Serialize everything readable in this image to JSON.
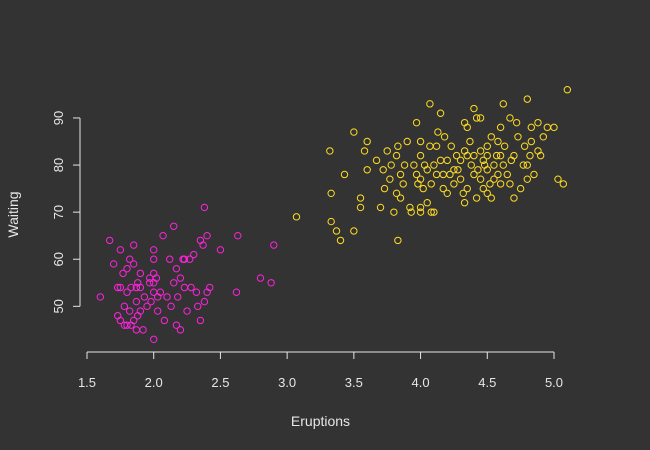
{
  "chart_data": {
    "type": "scatter",
    "title": "",
    "xlabel": "Eruptions",
    "ylabel": "Waiting",
    "xlim": [
      1.5,
      5.15
    ],
    "ylim": [
      42,
      97
    ],
    "xticks": [
      1.5,
      2.0,
      2.5,
      3.0,
      3.5,
      4.0,
      4.5,
      5.0
    ],
    "xtick_labels": [
      "1.5",
      "2.0",
      "2.5",
      "3.0",
      "3.5",
      "4.0",
      "4.5",
      "5.0"
    ],
    "yticks": [
      50,
      60,
      70,
      80,
      90
    ],
    "ytick_labels": [
      "50",
      "60",
      "70",
      "80",
      "90"
    ],
    "background": "#333333",
    "foreground": "#e6e6e6",
    "grid": false,
    "series": [
      {
        "color": "#ff22dd",
        "points": [
          [
            1.6,
            52
          ],
          [
            1.67,
            64
          ],
          [
            1.7,
            59
          ],
          [
            1.73,
            54
          ],
          [
            1.73,
            48
          ],
          [
            1.75,
            62
          ],
          [
            1.75,
            47
          ],
          [
            1.75,
            54
          ],
          [
            1.77,
            57
          ],
          [
            1.78,
            50
          ],
          [
            1.78,
            46
          ],
          [
            1.8,
            53
          ],
          [
            1.8,
            46
          ],
          [
            1.8,
            58
          ],
          [
            1.82,
            60
          ],
          [
            1.82,
            49
          ],
          [
            1.83,
            54
          ],
          [
            1.83,
            46
          ],
          [
            1.85,
            63
          ],
          [
            1.85,
            59
          ],
          [
            1.85,
            47
          ],
          [
            1.87,
            54
          ],
          [
            1.87,
            51
          ],
          [
            1.87,
            45
          ],
          [
            1.88,
            55
          ],
          [
            1.88,
            48
          ],
          [
            1.9,
            54
          ],
          [
            1.9,
            57
          ],
          [
            1.9,
            49
          ],
          [
            1.92,
            45
          ],
          [
            1.93,
            52
          ],
          [
            1.95,
            50
          ],
          [
            1.97,
            56
          ],
          [
            1.97,
            55
          ],
          [
            1.98,
            51
          ],
          [
            2.0,
            62
          ],
          [
            2.0,
            60
          ],
          [
            2.0,
            57
          ],
          [
            2.0,
            55
          ],
          [
            2.0,
            53
          ],
          [
            2.0,
            43
          ],
          [
            2.02,
            56
          ],
          [
            2.03,
            49
          ],
          [
            2.03,
            52
          ],
          [
            2.05,
            53
          ],
          [
            2.07,
            65
          ],
          [
            2.08,
            47
          ],
          [
            2.1,
            52
          ],
          [
            2.12,
            60
          ],
          [
            2.13,
            50
          ],
          [
            2.15,
            67
          ],
          [
            2.15,
            55
          ],
          [
            2.17,
            58
          ],
          [
            2.17,
            46
          ],
          [
            2.18,
            52
          ],
          [
            2.2,
            56
          ],
          [
            2.2,
            45
          ],
          [
            2.22,
            60
          ],
          [
            2.23,
            60
          ],
          [
            2.23,
            54
          ],
          [
            2.25,
            49
          ],
          [
            2.27,
            60
          ],
          [
            2.28,
            54
          ],
          [
            2.3,
            61
          ],
          [
            2.32,
            53
          ],
          [
            2.33,
            50
          ],
          [
            2.35,
            64
          ],
          [
            2.35,
            47
          ],
          [
            2.37,
            63
          ],
          [
            2.38,
            71
          ],
          [
            2.38,
            51
          ],
          [
            2.4,
            65
          ],
          [
            2.4,
            53
          ],
          [
            2.42,
            54
          ],
          [
            2.5,
            62
          ],
          [
            2.62,
            53
          ],
          [
            2.63,
            65
          ],
          [
            2.8,
            56
          ],
          [
            2.88,
            55
          ],
          [
            2.9,
            63
          ]
        ]
      },
      {
        "color": "#ffdd22",
        "points": [
          [
            3.07,
            69
          ],
          [
            3.32,
            83
          ],
          [
            3.33,
            74
          ],
          [
            3.33,
            68
          ],
          [
            3.37,
            66
          ],
          [
            3.4,
            64
          ],
          [
            3.43,
            78
          ],
          [
            3.5,
            87
          ],
          [
            3.5,
            66
          ],
          [
            3.55,
            71
          ],
          [
            3.55,
            73
          ],
          [
            3.58,
            83
          ],
          [
            3.6,
            85
          ],
          [
            3.6,
            79
          ],
          [
            3.67,
            81
          ],
          [
            3.7,
            71
          ],
          [
            3.72,
            79
          ],
          [
            3.73,
            75
          ],
          [
            3.75,
            83
          ],
          [
            3.77,
            77
          ],
          [
            3.78,
            80
          ],
          [
            3.8,
            70
          ],
          [
            3.82,
            82
          ],
          [
            3.82,
            74
          ],
          [
            3.83,
            84
          ],
          [
            3.83,
            64
          ],
          [
            3.85,
            78
          ],
          [
            3.85,
            73
          ],
          [
            3.87,
            76
          ],
          [
            3.88,
            80
          ],
          [
            3.9,
            85
          ],
          [
            3.92,
            71
          ],
          [
            3.93,
            70
          ],
          [
            3.95,
            80
          ],
          [
            3.97,
            89
          ],
          [
            3.97,
            78
          ],
          [
            3.98,
            76
          ],
          [
            4.0,
            85
          ],
          [
            4.0,
            82
          ],
          [
            4.0,
            77
          ],
          [
            4.0,
            71
          ],
          [
            4.0,
            70
          ],
          [
            4.02,
            75
          ],
          [
            4.03,
            80
          ],
          [
            4.05,
            72
          ],
          [
            4.05,
            79
          ],
          [
            4.07,
            93
          ],
          [
            4.07,
            84
          ],
          [
            4.08,
            70
          ],
          [
            4.08,
            76
          ],
          [
            4.1,
            80
          ],
          [
            4.1,
            70
          ],
          [
            4.12,
            78
          ],
          [
            4.12,
            84
          ],
          [
            4.13,
            87
          ],
          [
            4.15,
            91
          ],
          [
            4.15,
            81
          ],
          [
            4.17,
            75
          ],
          [
            4.17,
            78
          ],
          [
            4.18,
            86
          ],
          [
            4.2,
            81
          ],
          [
            4.2,
            74
          ],
          [
            4.22,
            78
          ],
          [
            4.23,
            84
          ],
          [
            4.25,
            76
          ],
          [
            4.25,
            79
          ],
          [
            4.27,
            82
          ],
          [
            4.28,
            79
          ],
          [
            4.3,
            81
          ],
          [
            4.3,
            77
          ],
          [
            4.32,
            74
          ],
          [
            4.33,
            89
          ],
          [
            4.33,
            83
          ],
          [
            4.33,
            72
          ],
          [
            4.35,
            88
          ],
          [
            4.35,
            82
          ],
          [
            4.35,
            75
          ],
          [
            4.37,
            85
          ],
          [
            4.38,
            80
          ],
          [
            4.4,
            92
          ],
          [
            4.4,
            82
          ],
          [
            4.4,
            78
          ],
          [
            4.42,
            90
          ],
          [
            4.42,
            73
          ],
          [
            4.43,
            79
          ],
          [
            4.45,
            90
          ],
          [
            4.45,
            83
          ],
          [
            4.45,
            77
          ],
          [
            4.47,
            81
          ],
          [
            4.47,
            75
          ],
          [
            4.48,
            80
          ],
          [
            4.5,
            84
          ],
          [
            4.5,
            82
          ],
          [
            4.5,
            79
          ],
          [
            4.5,
            74
          ],
          [
            4.52,
            76
          ],
          [
            4.53,
            86
          ],
          [
            4.53,
            73
          ],
          [
            4.55,
            80
          ],
          [
            4.55,
            77
          ],
          [
            4.57,
            82
          ],
          [
            4.58,
            85
          ],
          [
            4.58,
            78
          ],
          [
            4.6,
            88
          ],
          [
            4.6,
            82
          ],
          [
            4.6,
            76
          ],
          [
            4.62,
            93
          ],
          [
            4.62,
            80
          ],
          [
            4.63,
            84
          ],
          [
            4.65,
            78
          ],
          [
            4.67,
            90
          ],
          [
            4.67,
            76
          ],
          [
            4.68,
            81
          ],
          [
            4.7,
            82
          ],
          [
            4.7,
            73
          ],
          [
            4.72,
            89
          ],
          [
            4.73,
            86
          ],
          [
            4.75,
            75
          ],
          [
            4.77,
            80
          ],
          [
            4.78,
            84
          ],
          [
            4.8,
            94
          ],
          [
            4.8,
            80
          ],
          [
            4.8,
            77
          ],
          [
            4.82,
            82
          ],
          [
            4.83,
            88
          ],
          [
            4.83,
            85
          ],
          [
            4.85,
            78
          ],
          [
            4.88,
            83
          ],
          [
            4.88,
            89
          ],
          [
            4.9,
            82
          ],
          [
            4.92,
            86
          ],
          [
            4.95,
            88
          ],
          [
            5.0,
            88
          ],
          [
            5.03,
            77
          ],
          [
            5.07,
            76
          ],
          [
            5.1,
            96
          ]
        ]
      }
    ]
  }
}
